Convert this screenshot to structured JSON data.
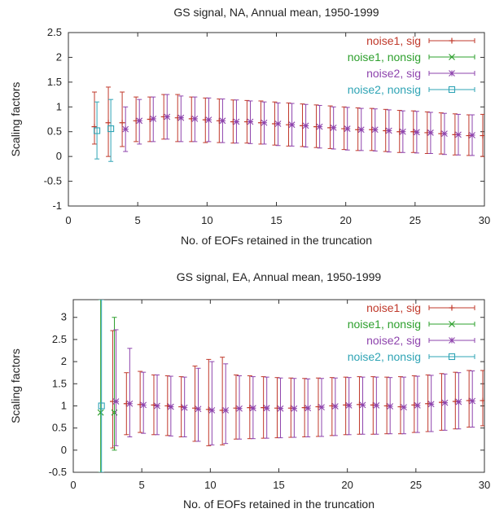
{
  "colors": {
    "noise1_sig": "#c0392b",
    "noise1_nonsig": "#2ea02e",
    "noise2_sig": "#8e44ad",
    "noise2_nonsig": "#2fa4b5",
    "axis": "#333333"
  },
  "chart_data": [
    {
      "type": "errorbar",
      "title": "GS signal, NA, Annual mean, 1950-1999",
      "xlabel": "No. of EOFs retained in the truncation",
      "ylabel": "Scaling factors",
      "xlim": [
        0,
        30
      ],
      "ylim": [
        -1,
        2.5
      ],
      "xticks": [
        0,
        5,
        10,
        15,
        20,
        25,
        30
      ],
      "yticks": [
        -1,
        -0.5,
        0,
        0.5,
        1,
        1.5,
        2,
        2.5
      ],
      "ytick_labels": [
        "-1",
        "-0.5",
        "0",
        "0.5",
        "1",
        "1.5",
        "2",
        "2.5"
      ],
      "legend_position": "top-right",
      "grid": false,
      "series": [
        {
          "name": "noise1, sig",
          "marker": "plus",
          "points": [
            {
              "x": 3,
              "y": 0.68,
              "lo": 0.0,
              "hi": 1.4
            },
            {
              "x": 4,
              "y": 0.68,
              "lo": 0.2,
              "hi": 1.3
            },
            {
              "x": 5,
              "y": 0.72,
              "lo": 0.3,
              "hi": 1.2
            },
            {
              "x": 6,
              "y": 0.75,
              "lo": 0.3,
              "hi": 1.2
            },
            {
              "x": 7,
              "y": 0.8,
              "lo": 0.35,
              "hi": 1.25
            },
            {
              "x": 8,
              "y": 0.78,
              "lo": 0.3,
              "hi": 1.25
            },
            {
              "x": 9,
              "y": 0.76,
              "lo": 0.3,
              "hi": 1.2
            },
            {
              "x": 10,
              "y": 0.74,
              "lo": 0.28,
              "hi": 1.18
            },
            {
              "x": 11,
              "y": 0.72,
              "lo": 0.28,
              "hi": 1.16
            },
            {
              "x": 12,
              "y": 0.7,
              "lo": 0.27,
              "hi": 1.14
            },
            {
              "x": 13,
              "y": 0.7,
              "lo": 0.27,
              "hi": 1.13
            },
            {
              "x": 14,
              "y": 0.68,
              "lo": 0.25,
              "hi": 1.12
            },
            {
              "x": 15,
              "y": 0.66,
              "lo": 0.23,
              "hi": 1.1
            },
            {
              "x": 16,
              "y": 0.64,
              "lo": 0.21,
              "hi": 1.08
            },
            {
              "x": 17,
              "y": 0.62,
              "lo": 0.2,
              "hi": 1.06
            },
            {
              "x": 18,
              "y": 0.6,
              "lo": 0.18,
              "hi": 1.04
            },
            {
              "x": 19,
              "y": 0.58,
              "lo": 0.16,
              "hi": 1.02
            },
            {
              "x": 20,
              "y": 0.56,
              "lo": 0.14,
              "hi": 1.0
            },
            {
              "x": 21,
              "y": 0.54,
              "lo": 0.12,
              "hi": 0.98
            },
            {
              "x": 22,
              "y": 0.54,
              "lo": 0.12,
              "hi": 0.97
            },
            {
              "x": 23,
              "y": 0.52,
              "lo": 0.1,
              "hi": 0.95
            },
            {
              "x": 24,
              "y": 0.5,
              "lo": 0.08,
              "hi": 0.93
            },
            {
              "x": 25,
              "y": 0.5,
              "lo": 0.08,
              "hi": 0.92
            },
            {
              "x": 26,
              "y": 0.48,
              "lo": 0.06,
              "hi": 0.9
            },
            {
              "x": 27,
              "y": 0.46,
              "lo": 0.05,
              "hi": 0.88
            },
            {
              "x": 28,
              "y": 0.44,
              "lo": 0.03,
              "hi": 0.86
            },
            {
              "x": 29,
              "y": 0.42,
              "lo": 0.02,
              "hi": 0.84
            },
            {
              "x": 30,
              "y": 0.42,
              "lo": 0.0,
              "hi": 0.85
            }
          ]
        },
        {
          "name": "noise1, nonsig",
          "marker": "cross",
          "points": []
        },
        {
          "name": "noise2, sig",
          "marker": "star",
          "points": [
            {
              "x": 4,
              "y": 0.55,
              "lo": 0.1,
              "hi": 1.0
            },
            {
              "x": 5,
              "y": 0.72,
              "lo": 0.25,
              "hi": 1.15
            },
            {
              "x": 6,
              "y": 0.76,
              "lo": 0.3,
              "hi": 1.2
            },
            {
              "x": 7,
              "y": 0.8,
              "lo": 0.35,
              "hi": 1.25
            },
            {
              "x": 8,
              "y": 0.78,
              "lo": 0.3,
              "hi": 1.22
            },
            {
              "x": 9,
              "y": 0.76,
              "lo": 0.3,
              "hi": 1.2
            },
            {
              "x": 10,
              "y": 0.74,
              "lo": 0.3,
              "hi": 1.18
            },
            {
              "x": 11,
              "y": 0.72,
              "lo": 0.28,
              "hi": 1.16
            },
            {
              "x": 12,
              "y": 0.7,
              "lo": 0.27,
              "hi": 1.14
            },
            {
              "x": 13,
              "y": 0.7,
              "lo": 0.26,
              "hi": 1.12
            },
            {
              "x": 14,
              "y": 0.68,
              "lo": 0.25,
              "hi": 1.1
            },
            {
              "x": 15,
              "y": 0.66,
              "lo": 0.22,
              "hi": 1.08
            },
            {
              "x": 16,
              "y": 0.64,
              "lo": 0.21,
              "hi": 1.07
            },
            {
              "x": 17,
              "y": 0.62,
              "lo": 0.19,
              "hi": 1.05
            },
            {
              "x": 18,
              "y": 0.6,
              "lo": 0.17,
              "hi": 1.03
            },
            {
              "x": 19,
              "y": 0.58,
              "lo": 0.15,
              "hi": 1.0
            },
            {
              "x": 20,
              "y": 0.56,
              "lo": 0.13,
              "hi": 0.99
            },
            {
              "x": 21,
              "y": 0.54,
              "lo": 0.12,
              "hi": 0.97
            },
            {
              "x": 22,
              "y": 0.54,
              "lo": 0.11,
              "hi": 0.96
            },
            {
              "x": 23,
              "y": 0.52,
              "lo": 0.09,
              "hi": 0.94
            },
            {
              "x": 24,
              "y": 0.5,
              "lo": 0.08,
              "hi": 0.92
            },
            {
              "x": 25,
              "y": 0.49,
              "lo": 0.07,
              "hi": 0.91
            },
            {
              "x": 26,
              "y": 0.48,
              "lo": 0.06,
              "hi": 0.89
            },
            {
              "x": 27,
              "y": 0.46,
              "lo": 0.04,
              "hi": 0.87
            },
            {
              "x": 28,
              "y": 0.44,
              "lo": 0.03,
              "hi": 0.85
            },
            {
              "x": 29,
              "y": 0.43,
              "lo": 0.02,
              "hi": 0.84
            }
          ]
        },
        {
          "name": "noise2, nonsig",
          "marker": "square",
          "points": [
            {
              "x": 2,
              "y": 0.52,
              "lo": -0.05,
              "hi": 1.1
            },
            {
              "x": 3,
              "y": 0.56,
              "lo": -0.1,
              "hi": 1.15
            }
          ]
        }
      ],
      "extra_series_points": {
        "noise1, sig": [
          {
            "x": 2,
            "y": 0.6,
            "lo": 0.25,
            "hi": 1.3
          }
        ]
      }
    },
    {
      "type": "errorbar",
      "title": "GS signal, EA, Annual mean, 1950-1999",
      "xlabel": "No. of EOFs retained in the truncation",
      "ylabel": "Scaling factors",
      "xlim": [
        0,
        30
      ],
      "ylim": [
        -0.5,
        3.4
      ],
      "xticks": [
        0,
        5,
        10,
        15,
        20,
        25,
        30
      ],
      "yticks": [
        -0.5,
        0,
        0.5,
        1,
        1.5,
        2,
        2.5,
        3
      ],
      "ytick_labels": [
        "-0.5",
        "0",
        "0.5",
        "1",
        "1.5",
        "2",
        "2.5",
        "3"
      ],
      "legend_position": "top-right",
      "grid": false,
      "series": [
        {
          "name": "noise1, sig",
          "marker": "plus",
          "points": [
            {
              "x": 3,
              "y": 1.1,
              "lo": 0.05,
              "hi": 2.7
            },
            {
              "x": 4,
              "y": 1.05,
              "lo": 0.35,
              "hi": 1.75
            },
            {
              "x": 5,
              "y": 1.03,
              "lo": 0.4,
              "hi": 1.78
            },
            {
              "x": 6,
              "y": 1.02,
              "lo": 0.35,
              "hi": 1.7
            },
            {
              "x": 7,
              "y": 1.0,
              "lo": 0.33,
              "hi": 1.68
            },
            {
              "x": 8,
              "y": 0.98,
              "lo": 0.3,
              "hi": 1.66
            },
            {
              "x": 9,
              "y": 0.95,
              "lo": 0.2,
              "hi": 1.9
            },
            {
              "x": 10,
              "y": 0.92,
              "lo": 0.1,
              "hi": 2.05
            },
            {
              "x": 11,
              "y": 0.9,
              "lo": 0.12,
              "hi": 2.1
            },
            {
              "x": 12,
              "y": 0.95,
              "lo": 0.25,
              "hi": 1.7
            },
            {
              "x": 13,
              "y": 0.96,
              "lo": 0.26,
              "hi": 1.68
            },
            {
              "x": 14,
              "y": 0.96,
              "lo": 0.27,
              "hi": 1.66
            },
            {
              "x": 15,
              "y": 0.95,
              "lo": 0.28,
              "hi": 1.64
            },
            {
              "x": 16,
              "y": 0.95,
              "lo": 0.29,
              "hi": 1.63
            },
            {
              "x": 17,
              "y": 0.96,
              "lo": 0.3,
              "hi": 1.62
            },
            {
              "x": 18,
              "y": 0.98,
              "lo": 0.31,
              "hi": 1.63
            },
            {
              "x": 19,
              "y": 1.0,
              "lo": 0.33,
              "hi": 1.64
            },
            {
              "x": 20,
              "y": 1.02,
              "lo": 0.35,
              "hi": 1.65
            },
            {
              "x": 21,
              "y": 1.03,
              "lo": 0.36,
              "hi": 1.66
            },
            {
              "x": 22,
              "y": 1.02,
              "lo": 0.36,
              "hi": 1.66
            },
            {
              "x": 23,
              "y": 1.0,
              "lo": 0.37,
              "hi": 1.65
            },
            {
              "x": 24,
              "y": 0.98,
              "lo": 0.37,
              "hi": 1.66
            },
            {
              "x": 25,
              "y": 1.02,
              "lo": 0.4,
              "hi": 1.68
            },
            {
              "x": 26,
              "y": 1.05,
              "lo": 0.42,
              "hi": 1.7
            },
            {
              "x": 27,
              "y": 1.08,
              "lo": 0.45,
              "hi": 1.73
            },
            {
              "x": 28,
              "y": 1.1,
              "lo": 0.48,
              "hi": 1.76
            },
            {
              "x": 29,
              "y": 1.12,
              "lo": 0.52,
              "hi": 1.8
            },
            {
              "x": 30,
              "y": 1.12,
              "lo": 0.55,
              "hi": 1.8
            }
          ]
        },
        {
          "name": "noise1, nonsig",
          "marker": "cross",
          "points": [
            {
              "x": 2,
              "y": 0.85,
              "lo": -0.5,
              "hi": 3.4
            },
            {
              "x": 3,
              "y": 0.85,
              "lo": 0.0,
              "hi": 3.0
            }
          ]
        },
        {
          "name": "noise2, sig",
          "marker": "star",
          "points": [
            {
              "x": 3,
              "y": 1.1,
              "lo": 0.1,
              "hi": 2.72
            },
            {
              "x": 4,
              "y": 1.05,
              "lo": 0.3,
              "hi": 2.3
            },
            {
              "x": 5,
              "y": 1.02,
              "lo": 0.38,
              "hi": 1.76
            },
            {
              "x": 6,
              "y": 1.0,
              "lo": 0.35,
              "hi": 1.7
            },
            {
              "x": 7,
              "y": 0.98,
              "lo": 0.32,
              "hi": 1.67
            },
            {
              "x": 8,
              "y": 0.96,
              "lo": 0.3,
              "hi": 1.65
            },
            {
              "x": 9,
              "y": 0.93,
              "lo": 0.2,
              "hi": 1.85
            },
            {
              "x": 10,
              "y": 0.9,
              "lo": 0.12,
              "hi": 2.0
            },
            {
              "x": 11,
              "y": 0.9,
              "lo": 0.15,
              "hi": 1.95
            },
            {
              "x": 12,
              "y": 0.94,
              "lo": 0.25,
              "hi": 1.68
            },
            {
              "x": 13,
              "y": 0.95,
              "lo": 0.26,
              "hi": 1.66
            },
            {
              "x": 14,
              "y": 0.95,
              "lo": 0.27,
              "hi": 1.65
            },
            {
              "x": 15,
              "y": 0.94,
              "lo": 0.28,
              "hi": 1.63
            },
            {
              "x": 16,
              "y": 0.94,
              "lo": 0.29,
              "hi": 1.62
            },
            {
              "x": 17,
              "y": 0.95,
              "lo": 0.3,
              "hi": 1.61
            },
            {
              "x": 18,
              "y": 0.97,
              "lo": 0.31,
              "hi": 1.62
            },
            {
              "x": 19,
              "y": 0.99,
              "lo": 0.33,
              "hi": 1.63
            },
            {
              "x": 20,
              "y": 1.01,
              "lo": 0.35,
              "hi": 1.64
            },
            {
              "x": 21,
              "y": 1.02,
              "lo": 0.36,
              "hi": 1.65
            },
            {
              "x": 22,
              "y": 1.01,
              "lo": 0.36,
              "hi": 1.65
            },
            {
              "x": 23,
              "y": 0.99,
              "lo": 0.37,
              "hi": 1.64
            },
            {
              "x": 24,
              "y": 0.97,
              "lo": 0.37,
              "hi": 1.65
            },
            {
              "x": 25,
              "y": 1.01,
              "lo": 0.4,
              "hi": 1.67
            },
            {
              "x": 26,
              "y": 1.04,
              "lo": 0.42,
              "hi": 1.69
            },
            {
              "x": 27,
              "y": 1.07,
              "lo": 0.45,
              "hi": 1.72
            },
            {
              "x": 28,
              "y": 1.09,
              "lo": 0.48,
              "hi": 1.75
            },
            {
              "x": 29,
              "y": 1.11,
              "lo": 0.52,
              "hi": 1.79
            }
          ]
        },
        {
          "name": "noise2, nonsig",
          "marker": "square",
          "points": [
            {
              "x": 2,
              "y": 1.0,
              "lo": -0.5,
              "hi": 3.4
            }
          ]
        }
      ]
    }
  ]
}
